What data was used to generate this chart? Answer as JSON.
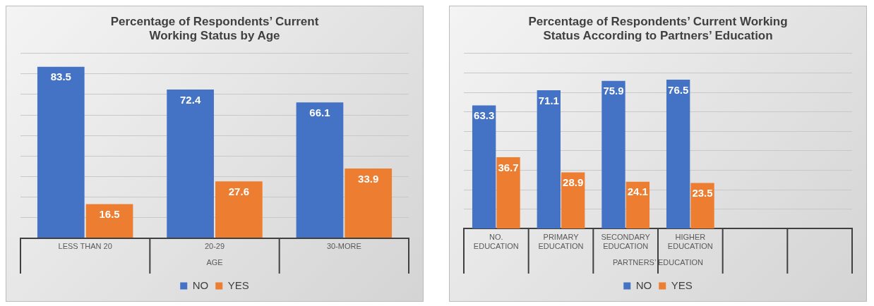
{
  "chart_data": [
    {
      "type": "bar",
      "title": "Percentage of Respondents’ Current Working Status by Age",
      "xlabel": "AGE",
      "categories": [
        "LESS THAN 20",
        "20-29",
        "30-MORE"
      ],
      "series": [
        {
          "name": "NO",
          "color": "#4472c4",
          "values": [
            83.5,
            72.4,
            66.1
          ]
        },
        {
          "name": "YES",
          "color": "#ed7d31",
          "values": [
            16.5,
            27.6,
            33.9
          ]
        }
      ],
      "ylim": [
        0,
        90
      ],
      "yticks": [
        {
          "value": 0,
          "label": null
        },
        {
          "value": 10,
          "label": null
        },
        {
          "value": 20,
          "label": null
        },
        {
          "value": 30,
          "label": null
        },
        {
          "value": 40,
          "label": null
        },
        {
          "value": 50,
          "label": null
        },
        {
          "value": 60,
          "label": null
        },
        {
          "value": 70,
          "label": null
        },
        {
          "value": 80,
          "label": null
        },
        {
          "value": 90,
          "label": null
        }
      ],
      "tick_labels": "x",
      "grid": "y",
      "legend": "bottom",
      "data_labels": true
    },
    {
      "type": "bar",
      "title": "Percentage of Respondents’ Current Working Status According to Partners’ Education",
      "xlabel": "PARTNERS’ EDUCATION",
      "categories": [
        "NO. EDUCATION",
        "PRIMARY EDUCATION",
        "SECONDARY EDUCATION",
        "HIGHER EDUCATION",
        null,
        null
      ],
      "series": [
        {
          "name": "NO",
          "color": "#4472c4",
          "values": [
            63.3,
            71.1,
            75.9,
            76.5,
            null,
            null
          ]
        },
        {
          "name": "YES",
          "color": "#ed7d31",
          "values": [
            36.7,
            28.9,
            24.1,
            23.5,
            null,
            null
          ]
        }
      ],
      "ylim": [
        0,
        90
      ],
      "yticks": [
        {
          "value": 0,
          "label": null
        },
        {
          "value": 10,
          "label": null
        },
        {
          "value": 20,
          "label": null
        },
        {
          "value": 30,
          "label": null
        },
        {
          "value": 40,
          "label": null
        },
        {
          "value": 50,
          "label": null
        },
        {
          "value": 60,
          "label": null
        },
        {
          "value": 70,
          "label": null
        },
        {
          "value": 80,
          "label": null
        },
        {
          "value": 90,
          "label": null
        }
      ],
      "tick_labels": "x",
      "grid": "y",
      "legend": "bottom",
      "data_labels": true
    }
  ]
}
